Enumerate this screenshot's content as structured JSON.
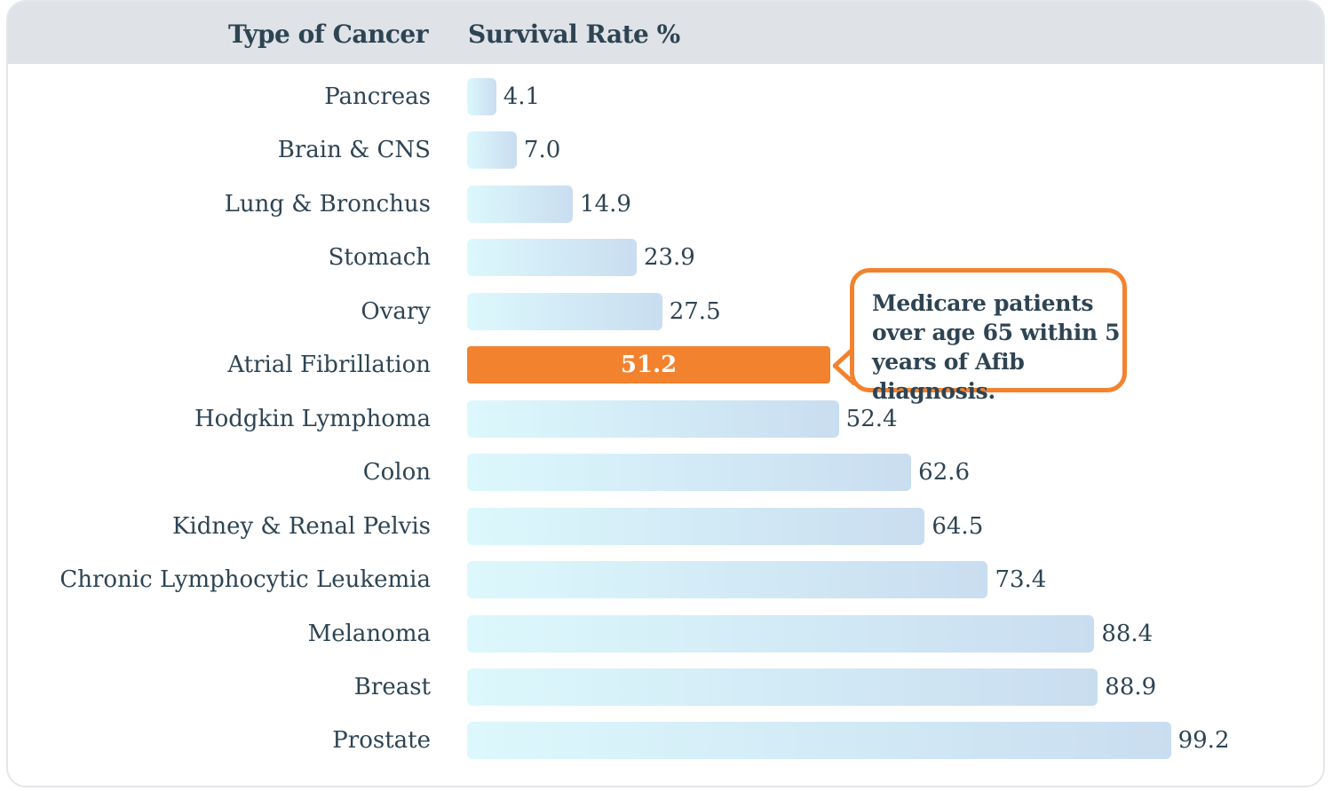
{
  "chart_data": {
    "type": "bar",
    "orientation": "horizontal",
    "column_headers": [
      "Type of Cancer",
      "Survival Rate %"
    ],
    "categories": [
      "Pancreas",
      "Brain & CNS",
      "Lung & Bronchus",
      "Stomach",
      "Ovary",
      "Atrial Fibrillation",
      "Hodgkin Lymphoma",
      "Colon",
      "Kidney & Renal Pelvis",
      "Chronic Lymphocytic Leukemia",
      "Melanoma",
      "Breast",
      "Prostate"
    ],
    "values": [
      4.1,
      7.0,
      14.9,
      23.9,
      27.5,
      51.2,
      52.4,
      62.6,
      64.5,
      73.4,
      88.4,
      88.9,
      99.2
    ],
    "value_labels": [
      "4.1",
      "7.0",
      "14.9",
      "23.9",
      "27.5",
      "51.2",
      "52.4",
      "62.6",
      "64.5",
      "73.4",
      "88.4",
      "88.9",
      "99.2"
    ],
    "highlight": "Atrial Fibrillation",
    "annotation": "Medicare patients over age 65 within 5 years of Afib diagnosis.",
    "xlim": [
      0,
      100
    ],
    "grid": false,
    "colors": {
      "bar_start": "#dcf8fc",
      "bar_end": "#c9ddf0",
      "highlight": "#f3822e",
      "text": "#2e4453",
      "header_bg": "#dfe3e7"
    }
  }
}
